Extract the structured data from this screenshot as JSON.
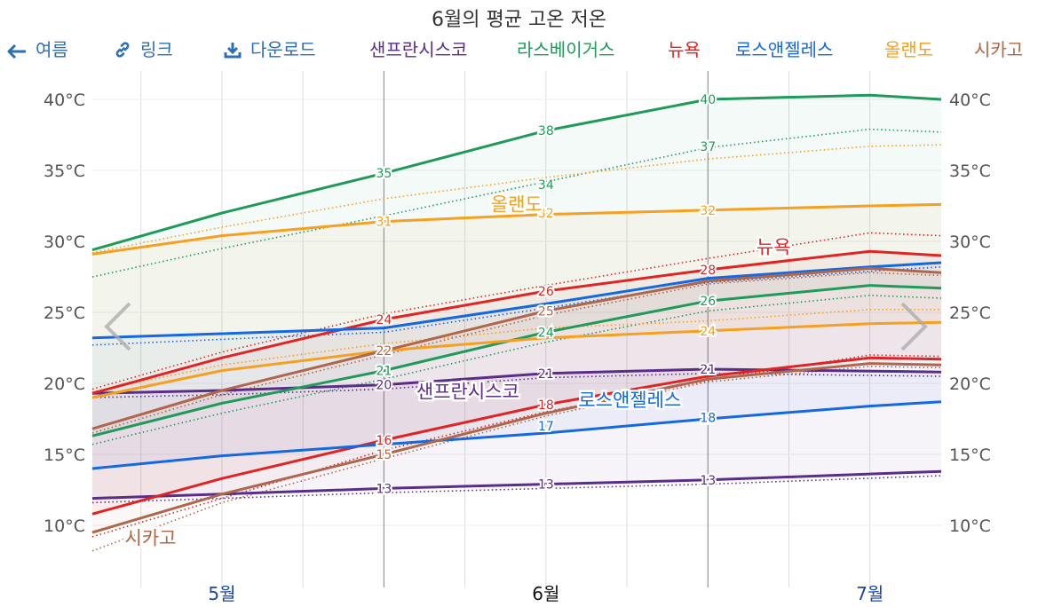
{
  "title": "6월의 평균 고온 저온",
  "nav": {
    "back_label": "여름",
    "link_label": "링크",
    "download_label": "다운로드"
  },
  "icons": {
    "prev": "chevron-left-icon",
    "next": "chevron-right-icon",
    "back": "arrow-left-icon",
    "link": "link-icon",
    "download": "download-icon"
  },
  "chart_data": {
    "type": "line",
    "title": "6월의 평균 고온 저온",
    "months": [
      {
        "label": "5월",
        "x": 5.5,
        "color": "#1a46a8"
      },
      {
        "label": "6월",
        "x": 6.5,
        "color": "#111111"
      },
      {
        "label": "7월",
        "x": 7.5,
        "color": "#1a46a8"
      }
    ],
    "xlim": [
      5.1,
      7.72
    ],
    "ylim": [
      7,
      42
    ],
    "y_ticks": [
      10,
      15,
      20,
      25,
      30,
      35,
      40
    ],
    "y_tick_labels": [
      "10°C",
      "15°C",
      "20°C",
      "25°C",
      "30°C",
      "35°C",
      "40°C"
    ],
    "current_month_bounds": [
      6.0,
      7.0
    ],
    "series": [
      {
        "name": "샌프란시스코",
        "color": "#5b2d8a",
        "high": [
          [
            5.1,
            19.3
          ],
          [
            5.5,
            19.5
          ],
          [
            6.0,
            19.9
          ],
          [
            6.5,
            20.7
          ],
          [
            7.0,
            21.0
          ],
          [
            7.72,
            20.8
          ]
        ],
        "low": [
          [
            5.1,
            11.9
          ],
          [
            5.5,
            12.2
          ],
          [
            6.0,
            12.6
          ],
          [
            6.5,
            12.9
          ],
          [
            7.0,
            13.2
          ],
          [
            7.72,
            13.8
          ]
        ],
        "high_dot": [
          [
            5.1,
            19.0
          ],
          [
            5.5,
            19.2
          ],
          [
            6.0,
            19.6
          ],
          [
            6.5,
            20.4
          ],
          [
            7.0,
            20.7
          ],
          [
            7.72,
            20.5
          ]
        ],
        "low_dot": [
          [
            5.1,
            11.6
          ],
          [
            5.5,
            11.9
          ],
          [
            6.0,
            12.3
          ],
          [
            6.5,
            12.6
          ],
          [
            7.0,
            12.9
          ],
          [
            7.72,
            13.5
          ]
        ],
        "labels": {
          "6.0": [
            "20",
            "13"
          ],
          "6.5": [
            "21",
            "13"
          ],
          "7.0": [
            "21",
            "13"
          ]
        },
        "name_label_at": [
          6.1,
          19.4
        ]
      },
      {
        "name": "라스베이거스",
        "color": "#1f9a5a",
        "high": [
          [
            5.1,
            29.4
          ],
          [
            5.5,
            32.0
          ],
          [
            6.0,
            34.8
          ],
          [
            6.5,
            37.8
          ],
          [
            7.0,
            40.0
          ],
          [
            7.5,
            40.3
          ],
          [
            7.72,
            40.0
          ]
        ],
        "low": [
          [
            5.1,
            16.3
          ],
          [
            5.5,
            18.6
          ],
          [
            6.0,
            20.9
          ],
          [
            6.5,
            23.6
          ],
          [
            7.0,
            25.8
          ],
          [
            7.5,
            26.9
          ],
          [
            7.72,
            26.7
          ]
        ],
        "high_dot": [
          [
            5.1,
            27.5
          ],
          [
            5.5,
            29.5
          ],
          [
            6.0,
            31.8
          ],
          [
            6.5,
            34.2
          ],
          [
            7.0,
            36.6
          ],
          [
            7.5,
            37.9
          ],
          [
            7.72,
            37.7
          ]
        ],
        "low_dot": [
          [
            5.1,
            15.7
          ],
          [
            5.5,
            17.9
          ],
          [
            6.0,
            20.3
          ],
          [
            6.5,
            22.9
          ],
          [
            7.0,
            25.1
          ],
          [
            7.5,
            26.2
          ],
          [
            7.72,
            26.0
          ]
        ],
        "labels": {
          "6.0": [
            "35",
            "21"
          ],
          "6.5": [
            "38",
            "24"
          ],
          "7.0": [
            "40",
            "26"
          ]
        }
      },
      {
        "name": "뉴욕",
        "color": "#e02424",
        "high": [
          [
            5.1,
            19.3
          ],
          [
            5.5,
            21.8
          ],
          [
            6.0,
            24.5
          ],
          [
            6.5,
            26.5
          ],
          [
            7.0,
            28.0
          ],
          [
            7.5,
            29.3
          ],
          [
            7.72,
            29.0
          ]
        ],
        "low": [
          [
            5.1,
            10.8
          ],
          [
            5.5,
            13.3
          ],
          [
            6.0,
            16.0
          ],
          [
            6.5,
            18.5
          ],
          [
            7.0,
            20.5
          ],
          [
            7.5,
            21.8
          ],
          [
            7.72,
            21.7
          ]
        ],
        "high_dot": [
          [
            5.1,
            19.6
          ],
          [
            5.5,
            22.2
          ],
          [
            6.0,
            24.9
          ],
          [
            6.5,
            26.9
          ],
          [
            7.0,
            28.8
          ],
          [
            7.5,
            30.6
          ],
          [
            7.72,
            30.4
          ]
        ],
        "low_dot": [
          [
            5.1,
            9.2
          ],
          [
            5.5,
            11.9
          ],
          [
            6.0,
            15.3
          ],
          [
            6.5,
            18.0
          ],
          [
            7.0,
            20.2
          ],
          [
            7.5,
            22.0
          ],
          [
            7.72,
            21.9
          ]
        ],
        "labels": {
          "6.0": [
            "24",
            "16"
          ],
          "6.5": [
            "26",
            "18"
          ],
          "7.0": [
            "28",
            ""
          ]
        },
        "name_label_at": [
          7.15,
          29.6
        ]
      },
      {
        "name": "로스앤젤레스",
        "color": "#1468e0",
        "high": [
          [
            5.1,
            23.2
          ],
          [
            5.5,
            23.5
          ],
          [
            6.0,
            23.9
          ],
          [
            6.5,
            25.6
          ],
          [
            7.0,
            27.4
          ],
          [
            7.5,
            28.2
          ],
          [
            7.72,
            28.5
          ]
        ],
        "low": [
          [
            5.1,
            14.0
          ],
          [
            5.5,
            14.9
          ],
          [
            6.0,
            15.7
          ],
          [
            6.5,
            16.5
          ],
          [
            7.0,
            17.5
          ],
          [
            7.5,
            18.4
          ],
          [
            7.72,
            18.7
          ]
        ],
        "high_dot": [
          [
            5.1,
            22.7
          ],
          [
            5.5,
            23.1
          ],
          [
            6.0,
            23.6
          ],
          [
            6.5,
            25.3
          ],
          [
            7.0,
            27.1
          ],
          [
            7.5,
            27.9
          ],
          [
            7.72,
            28.2
          ]
        ],
        "labels": {
          "6.5": [
            "",
            ""
          ],
          "7.0": [
            "",
            "18"
          ]
        },
        "label_low_at": [
          [
            6.0,
            "",
            ""
          ],
          [
            6.5,
            "17",
            ""
          ],
          [
            7.0,
            "18",
            ""
          ]
        ],
        "name_label_at": [
          6.6,
          18.8
        ]
      },
      {
        "name": "올랜도",
        "color": "#f5a020",
        "high": [
          [
            5.1,
            29.1
          ],
          [
            5.5,
            30.4
          ],
          [
            6.0,
            31.4
          ],
          [
            6.5,
            31.9
          ],
          [
            7.0,
            32.2
          ],
          [
            7.5,
            32.5
          ],
          [
            7.72,
            32.6
          ]
        ],
        "low": [
          [
            5.1,
            19.0
          ],
          [
            5.5,
            20.9
          ],
          [
            6.0,
            22.3
          ],
          [
            6.5,
            23.2
          ],
          [
            7.0,
            23.7
          ],
          [
            7.5,
            24.2
          ],
          [
            7.72,
            24.3
          ]
        ],
        "high_dot": [
          [
            5.1,
            29.2
          ],
          [
            5.5,
            31.0
          ],
          [
            6.0,
            33.0
          ],
          [
            6.5,
            34.5
          ],
          [
            7.0,
            35.8
          ],
          [
            7.5,
            36.7
          ],
          [
            7.72,
            36.8
          ]
        ],
        "low_dot": [
          [
            5.1,
            19.4
          ],
          [
            5.5,
            21.3
          ],
          [
            6.0,
            22.8
          ],
          [
            6.5,
            23.9
          ],
          [
            7.0,
            24.4
          ],
          [
            7.5,
            25.2
          ],
          [
            7.72,
            25.2
          ]
        ],
        "labels": {
          "6.0": [
            "31",
            "22"
          ],
          "7.0": [
            "32",
            "24"
          ]
        },
        "label_dot_at": [
          [
            6.0,
            "33"
          ]
        ],
        "name_label_at": [
          6.33,
          32.6
        ]
      },
      {
        "name": "시카고",
        "color": "#b0664a",
        "high": [
          [
            5.1,
            16.8
          ],
          [
            5.5,
            19.5
          ],
          [
            6.0,
            22.3
          ],
          [
            6.5,
            25.1
          ],
          [
            7.0,
            27.2
          ],
          [
            7.5,
            28.1
          ],
          [
            7.72,
            27.8
          ]
        ],
        "low": [
          [
            5.1,
            9.5
          ],
          [
            5.5,
            12.2
          ],
          [
            6.0,
            15.0
          ],
          [
            6.5,
            17.9
          ],
          [
            7.0,
            20.3
          ],
          [
            7.5,
            21.4
          ],
          [
            7.72,
            21.3
          ]
        ],
        "high_dot": [
          [
            5.1,
            16.5
          ],
          [
            5.5,
            19.2
          ],
          [
            6.0,
            22.0
          ],
          [
            6.5,
            24.8
          ],
          [
            7.0,
            27.0
          ],
          [
            7.5,
            27.8
          ],
          [
            7.72,
            27.6
          ]
        ],
        "low_dot": [
          [
            5.1,
            8.2
          ],
          [
            5.5,
            11.6
          ],
          [
            6.0,
            14.7
          ],
          [
            6.5,
            17.7
          ],
          [
            7.0,
            20.1
          ],
          [
            7.5,
            21.2
          ],
          [
            7.72,
            21.1
          ]
        ],
        "labels": {
          "6.0": [
            "22",
            "15"
          ],
          "6.5": [
            "25",
            ""
          ]
        },
        "name_label_at": [
          5.2,
          9.1
        ]
      }
    ],
    "extra_labels": [
      {
        "x": 6.5,
        "y": 34.0,
        "text": "34",
        "series": "라스베이거스"
      },
      {
        "x": 7.0,
        "y": 36.7,
        "text": "37",
        "series": "라스베이거스"
      },
      {
        "x": 6.5,
        "y": 32.0,
        "text": "32",
        "series": "올랜도"
      },
      {
        "x": 6.5,
        "y": 17.0,
        "text": "17",
        "series": "로스앤젤레스"
      },
      {
        "x": 7.0,
        "y": 17.6,
        "text": "18",
        "series": "로스앤젤레스"
      }
    ]
  }
}
